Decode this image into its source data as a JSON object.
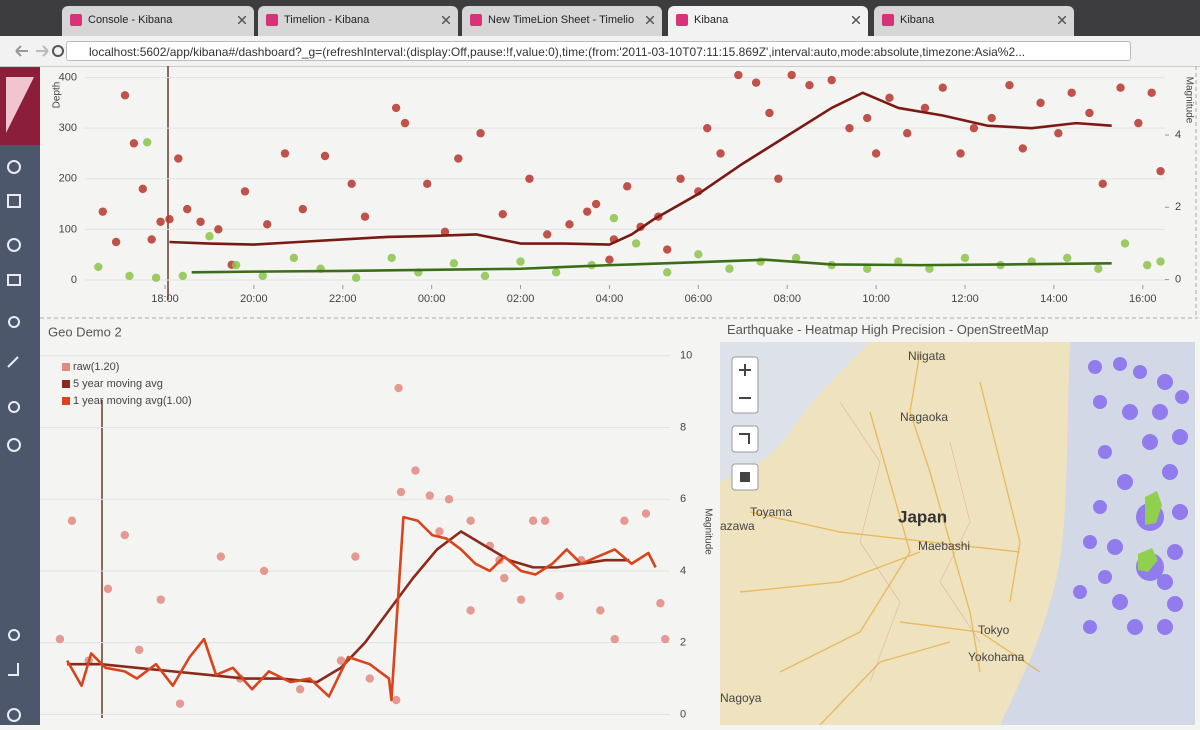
{
  "tabs": [
    "Console - Kibana",
    "Timelion - Kibana",
    "New TimeLion Sheet - Timelio",
    "Kibana",
    "Kibana"
  ],
  "url": "localhost:5602/app/kibana#/dashboard?_g=(refreshInterval:(display:Off,pause:!f,value:0),time:(from:'2011-03-10T07:11:15.869Z',interval:auto,mode:absolute,timezone:Asia%2...",
  "chart_data": [
    {
      "type": "line",
      "y_label": "Depth",
      "y2_label": "Magnitude",
      "grid": true,
      "xlim": [
        16.2,
        40.5
      ],
      "ylim": [
        -10,
        415
      ],
      "y2lim": [
        -0.15,
        5.8
      ],
      "xticks": [
        {
          "value": 18,
          "label": "18:00"
        },
        {
          "value": 20,
          "label": "20:00"
        },
        {
          "value": 22,
          "label": "22:00"
        },
        {
          "value": 24,
          "label": "00:00"
        },
        {
          "value": 26,
          "label": "02:00"
        },
        {
          "value": 28,
          "label": "04:00"
        },
        {
          "value": 30,
          "label": "06:00"
        },
        {
          "value": 32,
          "label": "08:00"
        },
        {
          "value": 34,
          "label": "10:00"
        },
        {
          "value": 36,
          "label": "12:00"
        },
        {
          "value": 38,
          "label": "14:00"
        },
        {
          "value": 40,
          "label": "16:00"
        }
      ],
      "yticks": [
        0,
        100,
        200,
        300,
        400
      ],
      "y2ticks": [
        0,
        2,
        4
      ],
      "series": [
        {
          "type": "scatter",
          "color": "#b5352b",
          "x": [
            16.6,
            16.9,
            17.1,
            17.3,
            17.5,
            17.7,
            17.9,
            18.1,
            18.3,
            18.5,
            18.8,
            19.2,
            19.5,
            19.8,
            20.3,
            20.7,
            21.1,
            21.6,
            22.2,
            22.5,
            23.2,
            23.4,
            23.9,
            24.3,
            24.6,
            25.1,
            25.6,
            26.2,
            26.6,
            27.1,
            27.5,
            28.1,
            28.4,
            28.7,
            29.1,
            29.6,
            30.0,
            30.5,
            30.9,
            31.3,
            31.6,
            32.1,
            32.5,
            33.0,
            33.4,
            33.8,
            34.0,
            34.3,
            34.7,
            35.1,
            35.5,
            35.9,
            36.2,
            36.6,
            37.0,
            37.3,
            37.7,
            38.1,
            38.4,
            38.8,
            39.1,
            39.5,
            39.9,
            40.2,
            40.4,
            28.0,
            27.7,
            29.3,
            30.2,
            31.8
          ],
          "values": [
            135,
            75,
            365,
            270,
            180,
            80,
            115,
            120,
            240,
            140,
            115,
            100,
            30,
            175,
            110,
            250,
            140,
            245,
            190,
            125,
            340,
            310,
            190,
            95,
            240,
            290,
            130,
            200,
            90,
            110,
            135,
            80,
            185,
            105,
            125,
            200,
            175,
            250,
            405,
            390,
            330,
            405,
            385,
            395,
            300,
            320,
            250,
            360,
            290,
            340,
            380,
            250,
            300,
            320,
            385,
            260,
            350,
            290,
            370,
            330,
            190,
            380,
            310,
            370,
            215,
            40,
            150,
            60,
            300,
            200
          ]
        },
        {
          "type": "scatter",
          "color": "#8bc34a",
          "axis": "y2",
          "x": [
            16.5,
            17.2,
            17.8,
            17.6,
            18.4,
            19,
            19.6,
            20.2,
            20.9,
            21.5,
            22.3,
            23.1,
            23.7,
            24.5,
            25.2,
            26,
            26.8,
            27.6,
            28.1,
            28.6,
            29.3,
            30.0,
            30.7,
            31.4,
            32.2,
            33.0,
            33.8,
            34.5,
            35.2,
            36.0,
            36.8,
            37.5,
            38.3,
            39.0,
            39.6,
            40.1,
            40.4
          ],
          "values": [
            0.35,
            0.1,
            0.05,
            3.8,
            0.1,
            1.2,
            0.4,
            0.1,
            0.6,
            0.3,
            0.05,
            0.6,
            0.2,
            0.45,
            0.1,
            0.5,
            0.2,
            0.4,
            1.7,
            1.0,
            0.2,
            0.7,
            0.3,
            0.5,
            0.6,
            0.4,
            0.3,
            0.5,
            0.3,
            0.6,
            0.4,
            0.5,
            0.6,
            0.3,
            1.0,
            0.4,
            0.5
          ]
        },
        {
          "type": "line",
          "color": "#7a1a12",
          "x": [
            18.1,
            19,
            20,
            21,
            22,
            23,
            24,
            25,
            26,
            27,
            28,
            28.5,
            29,
            30,
            31,
            32,
            33,
            33.7,
            34.5,
            35.5,
            36.5,
            37.5,
            38.5,
            39.3
          ],
          "values": [
            75,
            72,
            70,
            75,
            80,
            85,
            87,
            90,
            72,
            72,
            70,
            90,
            120,
            170,
            230,
            285,
            340,
            370,
            340,
            325,
            305,
            300,
            310,
            305
          ]
        },
        {
          "type": "line",
          "color": "#3c6e1a",
          "axis": "y2",
          "x": [
            18.6,
            20,
            22,
            24,
            26,
            27,
            28,
            30,
            31.5,
            33,
            35,
            37,
            39.3
          ],
          "values": [
            0.2,
            0.22,
            0.24,
            0.27,
            0.3,
            0.35,
            0.4,
            0.48,
            0.55,
            0.42,
            0.4,
            0.42,
            0.45
          ]
        }
      ]
    },
    {
      "type": "line",
      "title": "Geo Demo 2",
      "y_label": "Magnitude",
      "yaxis_position": "right",
      "grid": true,
      "legend": "top-left",
      "xlim": [
        15.47,
        41.7
      ],
      "ylim": [
        -0.1,
        10.3
      ],
      "yticks": [
        0,
        2,
        4,
        6,
        8,
        10
      ],
      "series": [
        {
          "type": "scatter",
          "name": "raw(1.20)",
          "color": "#e08a80",
          "x": [
            16.8,
            16.3,
            18.3,
            19.0,
            20.5,
            23.0,
            24.8,
            26.3,
            28.6,
            30.4,
            30.5,
            31.1,
            31.7,
            32.5,
            33.4,
            34.2,
            34.8,
            35.5,
            36.5,
            37.1,
            38.0,
            38.8,
            39.8,
            40.7,
            41.3,
            21.3,
            23.8,
            28.0,
            19.6,
            17.5,
            29.2,
            33.4,
            36.0,
            39.4,
            41.5,
            32.1,
            30.3,
            34.6
          ],
          "values": [
            5.4,
            2.1,
            3.5,
            5.0,
            3.2,
            4.4,
            4.0,
            0.7,
            4.4,
            9.1,
            6.2,
            6.8,
            6.1,
            6.0,
            5.4,
            4.7,
            3.8,
            3.2,
            5.4,
            3.3,
            4.3,
            2.9,
            5.4,
            5.6,
            3.1,
            0.3,
            1.0,
            1.5,
            1.8,
            1.5,
            1.0,
            2.9,
            5.4,
            2.1,
            2.1,
            5.1,
            0.4,
            4.3
          ]
        },
        {
          "type": "line",
          "name": "5 year moving avg",
          "color": "#8b2a1a",
          "x": [
            16.6,
            18,
            19.5,
            21,
            22.5,
            24,
            25.5,
            27,
            28,
            29,
            30,
            31,
            32,
            33,
            34,
            35,
            36,
            37,
            38,
            39,
            40
          ],
          "values": [
            1.4,
            1.4,
            1.3,
            1.2,
            1.1,
            1.0,
            1.0,
            0.9,
            1.3,
            2.0,
            2.9,
            3.8,
            4.6,
            5.1,
            4.7,
            4.3,
            4.1,
            4.1,
            4.2,
            4.3,
            4.3
          ]
        },
        {
          "type": "line",
          "name": "1 year moving avg(1.00)",
          "color": "#d9441c",
          "x": [
            16.6,
            17.2,
            17.6,
            18.2,
            19,
            19.5,
            20.3,
            21,
            21.7,
            22.3,
            22.8,
            23.5,
            24.3,
            25,
            25.9,
            26.7,
            27.5,
            28.3,
            29.2,
            30,
            30.1,
            30.6,
            31.2,
            31.8,
            32.4,
            33,
            33.6,
            34.2,
            34.8,
            35.5,
            36.1,
            36.8,
            37.4,
            38,
            38.7,
            39.4,
            40.1,
            40.8,
            41.1
          ],
          "values": [
            1.5,
            0.8,
            1.7,
            1.3,
            1.2,
            1.0,
            1.4,
            0.8,
            1.6,
            2.1,
            1.1,
            1.3,
            0.7,
            1.2,
            0.9,
            1.0,
            0.5,
            1.6,
            1.4,
            1.0,
            0.4,
            5.5,
            5.4,
            5.0,
            4.9,
            4.6,
            4.2,
            4.0,
            4.4,
            4.0,
            3.9,
            4.2,
            4.6,
            4.2,
            4.4,
            4.6,
            4.2,
            4.5,
            4.1
          ]
        }
      ]
    }
  ],
  "map": {
    "title": "Earthquake - Heatmap High Precision - OpenStreetMap",
    "labels": [
      "Niigata",
      "Nagaoka",
      "Toyama",
      "azawa",
      "Japan",
      "Maebashi",
      "Tokyo",
      "Yokohama",
      "Nagoya"
    ]
  }
}
